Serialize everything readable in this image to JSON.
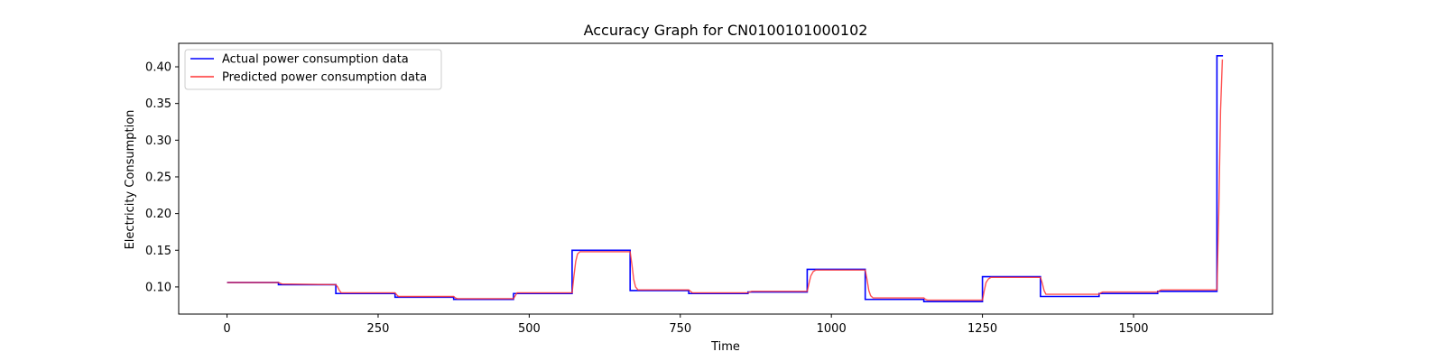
{
  "chart_data": {
    "type": "line",
    "title": "Accuracy Graph for CN0100101000102",
    "xlabel": "Time",
    "ylabel": "Electricity Consumption",
    "xlim": [
      -80,
      1730
    ],
    "ylim": [
      0.063,
      0.432
    ],
    "xticks": [
      0,
      250,
      500,
      750,
      1000,
      1250,
      1500
    ],
    "yticks": [
      0.1,
      0.15,
      0.2,
      0.25,
      0.3,
      0.35,
      0.4
    ],
    "xtick_labels": [
      "0",
      "250",
      "500",
      "750",
      "1000",
      "1250",
      "1500"
    ],
    "ytick_labels": [
      "0.10",
      "0.15",
      "0.20",
      "0.25",
      "0.30",
      "0.35",
      "0.40"
    ],
    "grid": false,
    "legend_position": "upper left",
    "series": [
      {
        "name": "Actual power consumption data",
        "color": "#0000ff",
        "x": [
          0,
          85,
          85,
          180,
          180,
          278,
          278,
          375,
          375,
          474,
          474,
          571,
          571,
          667,
          667,
          764,
          764,
          862,
          862,
          960,
          960,
          1056,
          1056,
          1153,
          1153,
          1250,
          1250,
          1346,
          1346,
          1443,
          1443,
          1540,
          1540,
          1638,
          1638,
          1648
        ],
        "y": [
          0.106,
          0.106,
          0.103,
          0.103,
          0.091,
          0.091,
          0.086,
          0.086,
          0.083,
          0.083,
          0.091,
          0.091,
          0.15,
          0.15,
          0.095,
          0.095,
          0.091,
          0.091,
          0.093,
          0.093,
          0.124,
          0.124,
          0.083,
          0.083,
          0.08,
          0.08,
          0.114,
          0.114,
          0.087,
          0.087,
          0.091,
          0.091,
          0.094,
          0.094,
          0.415,
          0.415
        ]
      },
      {
        "name": "Predicted power consumption data",
        "color": "#ff3333",
        "x": [
          0,
          85,
          88,
          91,
          180,
          183,
          186,
          189,
          278,
          281,
          284,
          375,
          378,
          381,
          474,
          477,
          480,
          571,
          574,
          577,
          580,
          584,
          667,
          670,
          673,
          676,
          680,
          764,
          767,
          770,
          773,
          862,
          865,
          868,
          960,
          963,
          966,
          970,
          974,
          1056,
          1059,
          1062,
          1065,
          1069,
          1153,
          1156,
          1159,
          1250,
          1253,
          1256,
          1260,
          1264,
          1346,
          1349,
          1352,
          1355,
          1443,
          1446,
          1449,
          1540,
          1543,
          1546,
          1638,
          1641,
          1644,
          1647
        ],
        "y": [
          0.106,
          0.106,
          0.105,
          0.104,
          0.103,
          0.1,
          0.095,
          0.092,
          0.092,
          0.089,
          0.087,
          0.087,
          0.085,
          0.084,
          0.084,
          0.088,
          0.092,
          0.092,
          0.115,
          0.135,
          0.145,
          0.148,
          0.148,
          0.13,
          0.11,
          0.1,
          0.096,
          0.096,
          0.094,
          0.092,
          0.092,
          0.092,
          0.093,
          0.094,
          0.094,
          0.105,
          0.115,
          0.121,
          0.123,
          0.123,
          0.11,
          0.095,
          0.088,
          0.085,
          0.085,
          0.083,
          0.082,
          0.082,
          0.095,
          0.106,
          0.111,
          0.113,
          0.113,
          0.105,
          0.095,
          0.09,
          0.09,
          0.092,
          0.093,
          0.093,
          0.095,
          0.096,
          0.096,
          0.2,
          0.34,
          0.41
        ]
      }
    ]
  }
}
